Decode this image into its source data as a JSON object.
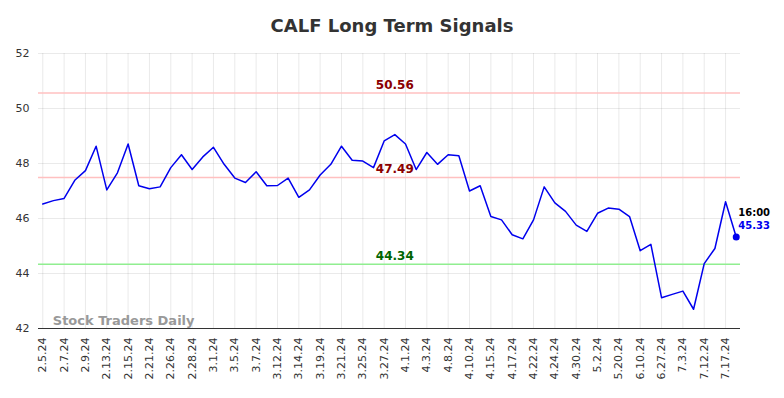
{
  "chart_data": {
    "type": "line",
    "title": "CALF Long Term Signals",
    "categories": [
      "2.5.24",
      null,
      "2.7.24",
      null,
      "2.9.24",
      null,
      "2.13.24",
      null,
      "2.15.24",
      null,
      "2.21.24",
      null,
      "2.26.24",
      null,
      "2.28.24",
      null,
      "3.1.24",
      null,
      "3.5.24",
      null,
      "3.7.24",
      null,
      "3.12.24",
      null,
      "3.14.24",
      null,
      "3.19.24",
      null,
      "3.21.24",
      null,
      "3.25.24",
      null,
      "3.27.24",
      null,
      "4.1.24",
      null,
      "4.3.24",
      null,
      "4.8.24",
      null,
      "4.10.24",
      null,
      "4.15.24",
      null,
      "4.17.24",
      null,
      "4.22.24",
      null,
      "4.24.24",
      null,
      "4.30.24",
      null,
      "5.2.24",
      null,
      "5.20.24",
      null,
      "6.10.24",
      null,
      "6.27.24",
      null,
      "7.3.24",
      null,
      "7.12.24",
      null,
      "7.17.24",
      null
    ],
    "values": [
      46.53,
      46.65,
      46.73,
      47.39,
      47.74,
      48.63,
      47.04,
      47.66,
      48.71,
      47.19,
      47.08,
      47.15,
      47.85,
      48.32,
      47.78,
      48.24,
      48.59,
      47.97,
      47.47,
      47.31,
      47.7,
      47.19,
      47.2,
      47.47,
      46.77,
      47.04,
      47.58,
      47.97,
      48.63,
      48.12,
      48.09,
      47.85,
      48.82,
      49.05,
      48.71,
      47.78,
      48.4,
      47.97,
      48.32,
      48.28,
      47.0,
      47.19,
      46.07,
      45.95,
      45.41,
      45.26,
      45.95,
      47.15,
      46.57,
      46.26,
      45.76,
      45.53,
      46.19,
      46.38,
      46.34,
      46.07,
      44.83,
      45.06,
      43.12,
      43.24,
      43.36,
      42.7,
      44.36,
      44.91,
      46.61,
      45.33
    ],
    "color": "#0000ee",
    "ylim": [
      42,
      52
    ],
    "yticks": [
      42,
      44,
      46,
      48,
      50,
      52
    ],
    "grid": true,
    "levels": [
      {
        "value": 50.56,
        "color": "#ffc0c0",
        "label_color": "#8b0000"
      },
      {
        "value": 47.49,
        "color": "#ffc0c0",
        "label_color": "#8b0000"
      },
      {
        "value": 44.34,
        "color": "#90ee90",
        "label_color": "#006400"
      }
    ],
    "last_point_label": "16:00",
    "watermark": "Stock Traders Daily"
  }
}
